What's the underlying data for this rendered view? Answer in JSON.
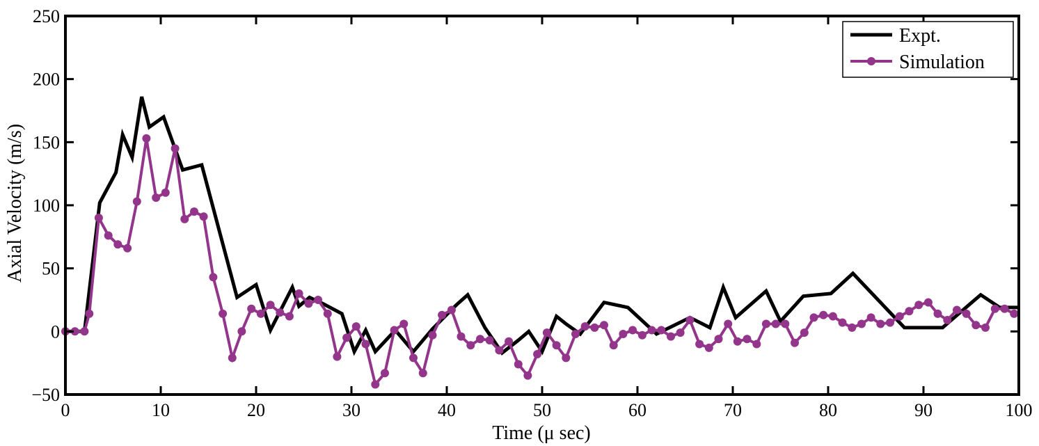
{
  "chart_data": {
    "type": "line",
    "title": "",
    "xlabel": "Time (μ sec)",
    "ylabel": "Axial Velocity (m/s)",
    "xlim": [
      0,
      100
    ],
    "ylim": [
      -50,
      250
    ],
    "xticks": [
      0,
      10,
      20,
      30,
      40,
      50,
      60,
      70,
      80,
      90,
      100
    ],
    "yticks": [
      -50,
      0,
      50,
      100,
      150,
      200,
      250
    ],
    "xtick_labels": [
      "0",
      "10",
      "20",
      "30",
      "40",
      "50",
      "60",
      "70",
      "80",
      "90",
      "100"
    ],
    "ytick_labels": [
      "−50",
      "0",
      "50",
      "100",
      "150",
      "200",
      "250"
    ],
    "grid": false,
    "legend_position": "top-right",
    "series": [
      {
        "name": "Expt.",
        "color": "#000000",
        "marker": "none",
        "x": [
          0,
          2,
          3.6,
          5.3,
          6,
          7,
          8,
          8.8,
          10.3,
          12.3,
          14.3,
          18,
          20,
          21.5,
          23.8,
          24.5,
          25.6,
          27,
          29,
          30.3,
          31.5,
          32.5,
          34.6,
          36.5,
          38.5,
          41,
          42.2,
          44,
          45.8,
          47.5,
          48.6,
          50,
          51.5,
          52.5,
          54,
          56.5,
          59,
          62,
          65.5,
          67.6,
          69,
          70.3,
          73.5,
          75,
          77.4,
          80.3,
          82.6,
          88,
          92,
          96,
          98,
          100
        ],
        "y": [
          0,
          0,
          102,
          126,
          156,
          138,
          186,
          162,
          170,
          128,
          132,
          27,
          37,
          1,
          35,
          20,
          27,
          22,
          14,
          -16,
          1,
          -16,
          1,
          -16,
          2,
          21,
          29,
          3,
          -17,
          -7,
          0,
          -16,
          12,
          6,
          -2,
          23,
          19,
          -2,
          11,
          3,
          35,
          11,
          32,
          8,
          28,
          30,
          46,
          3,
          3,
          29,
          19,
          19
        ]
      },
      {
        "name": "Simulation",
        "color": "#92358b",
        "marker": "circle",
        "x": [
          0,
          1,
          2,
          2.5,
          3.5,
          4.5,
          5.5,
          6.5,
          7.5,
          8.5,
          9.5,
          10.5,
          11.5,
          12.5,
          13.5,
          14.5,
          15.5,
          16.5,
          17.5,
          18.5,
          19.5,
          20.5,
          21.5,
          22.5,
          23.5,
          24.5,
          25.5,
          26.5,
          27.5,
          28.5,
          29.5,
          30.5,
          31.5,
          32.5,
          33.5,
          34.5,
          35.5,
          36.5,
          37.5,
          38.5,
          39.5,
          40.5,
          41.5,
          42.5,
          43.5,
          44.5,
          45.5,
          46.5,
          47.5,
          48.5,
          49.5,
          50.5,
          51.5,
          52.5,
          53.5,
          54.5,
          55.5,
          56.5,
          57.5,
          58.5,
          59.5,
          60.5,
          61.5,
          62.5,
          63.5,
          64.5,
          65.5,
          66.5,
          67.5,
          68.5,
          69.5,
          70.5,
          71.5,
          72.5,
          73.5,
          74.5,
          75.5,
          76.5,
          77.5,
          78.5,
          79.5,
          80.5,
          81.5,
          82.5,
          83.5,
          84.5,
          85.5,
          86.5,
          87.5,
          88.5,
          89.5,
          90.5,
          91.5,
          92.5,
          93.5,
          94.5,
          95.5,
          96.5,
          97.5,
          98.5,
          99.5
        ],
        "y": [
          0,
          0,
          0,
          14,
          90,
          76,
          69,
          66,
          103,
          153,
          106,
          110,
          145,
          89,
          95,
          91,
          43,
          14,
          -21,
          0,
          18,
          14,
          21,
          15,
          12,
          30,
          22,
          25,
          14,
          -20,
          -5,
          4,
          -10,
          -42,
          -33,
          1,
          6,
          -21,
          -33,
          -3,
          13,
          17,
          -4,
          -11,
          -6,
          -7,
          -15,
          -8,
          -26,
          -35,
          -18,
          -1,
          -11,
          -21,
          -2,
          4,
          3,
          5,
          -11,
          -2,
          1,
          -3,
          1,
          1,
          -4,
          -1,
          9,
          -10,
          -13,
          -6,
          6,
          -8,
          -6,
          -10,
          6,
          6,
          6,
          -9,
          -1,
          11,
          13,
          12,
          7,
          3,
          6,
          11,
          6,
          7,
          12,
          16,
          21,
          23,
          14,
          9,
          17,
          14,
          5,
          3,
          18,
          18,
          14
        ]
      }
    ]
  }
}
